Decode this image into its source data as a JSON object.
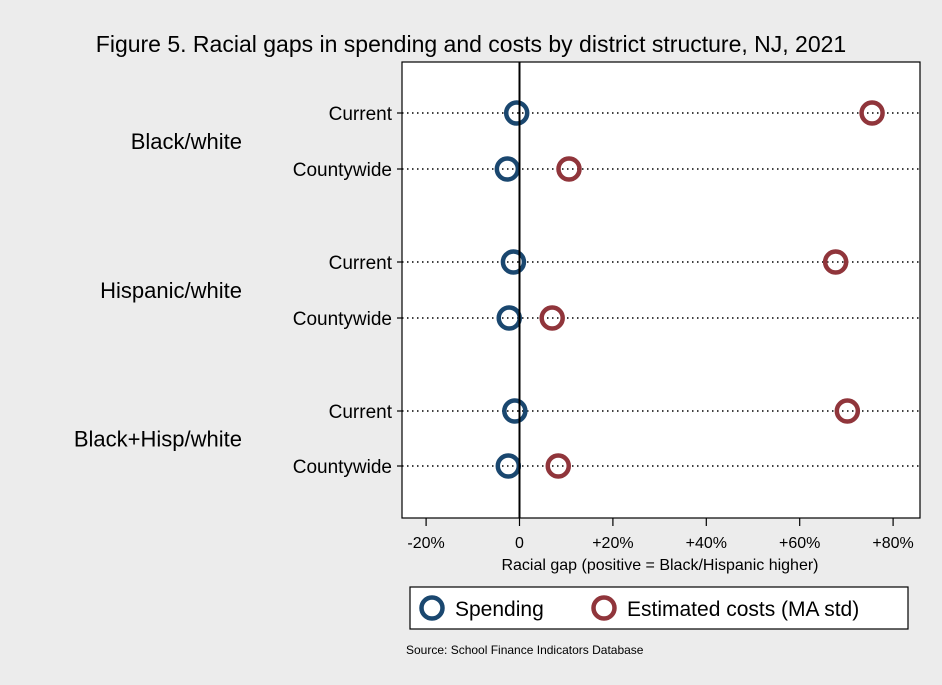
{
  "chart_data": {
    "type": "scatter",
    "title": "Figure 5. Racial gaps in spending and costs by district structure, NJ, 2021",
    "xlabel": "Racial gap (positive = Black/Hispanic higher)",
    "xlim": [
      -25,
      85
    ],
    "xticks": [
      -20,
      0,
      20,
      40,
      60,
      80
    ],
    "xtick_labels": [
      "-20%",
      "0",
      "+20%",
      "+40%",
      "+60%",
      "+80%"
    ],
    "grid": "dotted horizontal lines per row",
    "legend_position": "bottom",
    "groups": [
      {
        "label": "Black/white",
        "rows": [
          {
            "label": "Current",
            "spending": -0.6,
            "costs": 75.5
          },
          {
            "label": "Countywide",
            "spending": -2.6,
            "costs": 10.6
          }
        ]
      },
      {
        "label": "Hispanic/white",
        "rows": [
          {
            "label": "Current",
            "spending": -1.3,
            "costs": 67.7
          },
          {
            "label": "Countywide",
            "spending": -2.2,
            "costs": 7.0
          }
        ]
      },
      {
        "label": "Black+Hisp/white",
        "rows": [
          {
            "label": "Current",
            "spending": -1.0,
            "costs": 70.2
          },
          {
            "label": "Countywide",
            "spending": -2.4,
            "costs": 8.3
          }
        ]
      }
    ],
    "series": [
      {
        "key": "spending",
        "name": "Spending",
        "color": "#1a476f"
      },
      {
        "key": "costs",
        "name": "Estimated costs (MA std)",
        "color": "#90353b"
      }
    ],
    "source": "Source: School Finance Indicators Database"
  }
}
